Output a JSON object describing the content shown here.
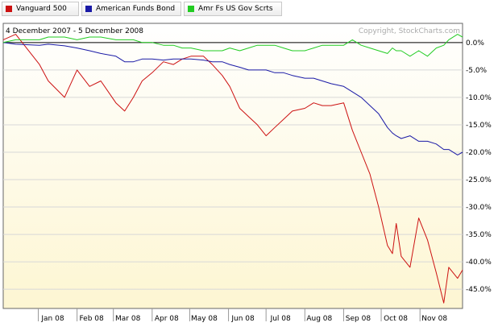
{
  "legend": [
    {
      "label": "Vanguard 500",
      "color": "#cc1111"
    },
    {
      "label": "American Funds Bond",
      "color": "#1a1aa6"
    },
    {
      "label": "Amr Fs US Gov Scrts",
      "color": "#22cc22"
    }
  ],
  "date_range": "4 December 2007 - 5 December 2008",
  "copyright": "Copyright, StockCharts.com",
  "chart_data": {
    "type": "line",
    "x_labels": [
      "Jan 08",
      "Feb 08",
      "Mar 08",
      "Apr 08",
      "May 08",
      "Jun 08",
      "Jul 08",
      "Aug 08",
      "Sep 08",
      "Oct 08",
      "Nov 08"
    ],
    "y_ticks": [
      "0.0%",
      "-5.0%",
      "-10.0%",
      "-15.0%",
      "-20.0%",
      "-25.0%",
      "-30.0%",
      "-35.0%",
      "-40.0%",
      "-45.0%"
    ],
    "ylim": [
      -48.5,
      3.5
    ],
    "x": [
      "2007-12-04",
      "2007-12-14",
      "2008-01-02",
      "2008-01-09",
      "2008-01-22",
      "2008-02-01",
      "2008-02-11",
      "2008-02-20",
      "2008-03-03",
      "2008-03-10",
      "2008-03-17",
      "2008-03-24",
      "2008-04-01",
      "2008-04-10",
      "2008-04-18",
      "2008-04-25",
      "2008-05-02",
      "2008-05-12",
      "2008-05-19",
      "2008-05-27",
      "2008-06-02",
      "2008-06-10",
      "2008-06-17",
      "2008-06-24",
      "2008-07-01",
      "2008-07-08",
      "2008-07-15",
      "2008-07-22",
      "2008-08-01",
      "2008-08-08",
      "2008-08-15",
      "2008-08-22",
      "2008-09-01",
      "2008-09-08",
      "2008-09-15",
      "2008-09-22",
      "2008-09-29",
      "2008-10-06",
      "2008-10-10",
      "2008-10-13",
      "2008-10-17",
      "2008-10-24",
      "2008-10-31",
      "2008-11-07",
      "2008-11-14",
      "2008-11-20",
      "2008-11-24",
      "2008-12-01",
      "2008-12-05"
    ],
    "series": [
      {
        "name": "Vanguard 500",
        "color": "#cc1111",
        "values": [
          0.5,
          1.5,
          -4.0,
          -7.0,
          -10.0,
          -5.0,
          -8.0,
          -7.0,
          -11.0,
          -12.5,
          -10.0,
          -7.0,
          -5.5,
          -3.5,
          -4.0,
          -3.0,
          -2.5,
          -2.5,
          -4.0,
          -6.0,
          -8.0,
          -12.0,
          -13.5,
          -15.0,
          -17.0,
          -15.5,
          -14.0,
          -12.5,
          -12.0,
          -11.0,
          -11.5,
          -11.5,
          -11.0,
          -16.0,
          -20.0,
          -24.0,
          -30.0,
          -37.0,
          -38.5,
          -33.0,
          -39.0,
          -41.0,
          -32.0,
          -36.0,
          -42.0,
          -47.5,
          -41.0,
          -43.0,
          -41.5
        ]
      },
      {
        "name": "American Funds Bond",
        "color": "#1a1aa6",
        "values": [
          0.0,
          -0.3,
          -0.5,
          -0.3,
          -0.6,
          -1.0,
          -1.5,
          -2.0,
          -2.5,
          -3.5,
          -3.5,
          -3.0,
          -3.0,
          -3.2,
          -3.0,
          -3.0,
          -3.0,
          -3.2,
          -3.5,
          -3.5,
          -4.0,
          -4.5,
          -5.0,
          -5.0,
          -5.0,
          -5.5,
          -5.5,
          -6.0,
          -6.5,
          -6.5,
          -7.0,
          -7.5,
          -8.0,
          -9.0,
          -10.0,
          -11.5,
          -13.0,
          -15.5,
          -16.5,
          -17.0,
          -17.5,
          -17.0,
          -18.0,
          -18.0,
          -18.5,
          -19.5,
          -19.5,
          -20.5,
          -20.0
        ]
      },
      {
        "name": "Amr Fs US Gov Scrts",
        "color": "#22cc22",
        "values": [
          0.0,
          0.5,
          0.5,
          1.0,
          1.0,
          0.5,
          1.0,
          1.0,
          0.5,
          0.5,
          0.5,
          0.0,
          0.0,
          -0.5,
          -0.5,
          -1.0,
          -1.0,
          -1.5,
          -1.5,
          -1.5,
          -1.0,
          -1.5,
          -1.0,
          -0.5,
          -0.5,
          -0.5,
          -1.0,
          -1.5,
          -1.5,
          -1.0,
          -0.5,
          -0.5,
          -0.5,
          0.5,
          -0.5,
          -1.0,
          -1.5,
          -2.0,
          -1.0,
          -1.5,
          -1.5,
          -2.5,
          -1.5,
          -2.5,
          -1.0,
          -0.5,
          0.5,
          1.5,
          1.0
        ]
      }
    ],
    "zero_line": true,
    "grid": true
  }
}
